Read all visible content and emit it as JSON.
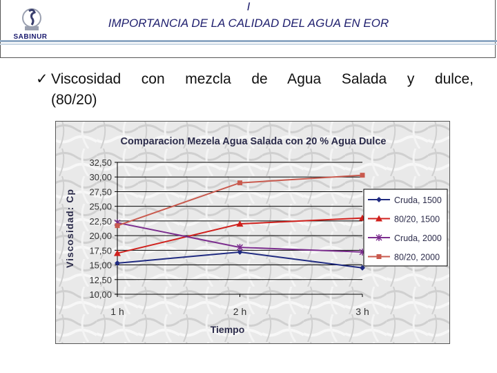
{
  "header": {
    "mark": "I",
    "title": "IMPORTANCIA DE LA CALIDAD DEL AGUA EN EOR",
    "logo_text": "SABINUR"
  },
  "bullet": {
    "check": "✓",
    "line1": "Viscosidad con mezcla de Agua Salada y dulce,",
    "line2": "(80/20)"
  },
  "chart_data": {
    "type": "line",
    "title": "Comparacion Mezela Agua Salada con 20 % Agua Dulce",
    "xlabel": "Tiempo",
    "ylabel": "Viscosidad: Cp",
    "categories": [
      "1 h",
      "2 h",
      "3 h"
    ],
    "y_ticks": [
      "32,50",
      "30,00",
      "27,50",
      "25,00",
      "22,50",
      "20,00",
      "17,50",
      "15,00",
      "12,50",
      "10,00"
    ],
    "ylim": [
      10,
      32.5
    ],
    "grid": true,
    "legend_position": "right",
    "series": [
      {
        "name": "Cruda, 1500",
        "values": [
          15.3,
          17.2,
          14.5
        ],
        "color": "#1f2a80",
        "marker": "diamond"
      },
      {
        "name": "80/20, 1500",
        "values": [
          17.0,
          22.0,
          23.0
        ],
        "color": "#d0201c",
        "marker": "triangle"
      },
      {
        "name": "Cruda, 2000",
        "values": [
          22.2,
          18.0,
          17.2
        ],
        "color": "#7b2d8e",
        "marker": "asterisk"
      },
      {
        "name": "80/20, 2000",
        "values": [
          21.7,
          29.0,
          30.3
        ],
        "color": "#c95a4e",
        "marker": "square"
      }
    ]
  }
}
